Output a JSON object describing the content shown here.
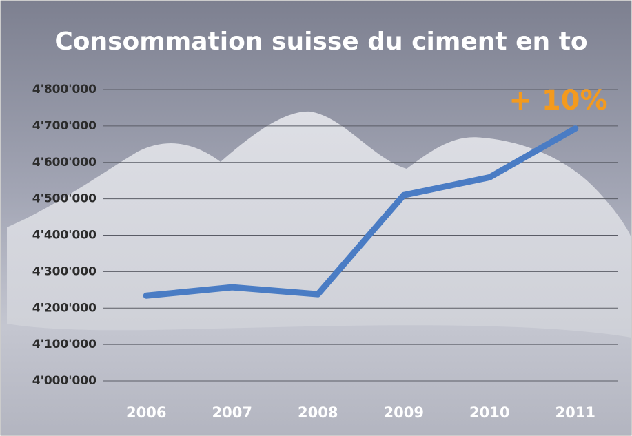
{
  "chart_data": {
    "type": "line",
    "title": "Consommation suisse du ciment en to",
    "categories": [
      "2006",
      "2007",
      "2008",
      "2009",
      "2010",
      "2011"
    ],
    "values": [
      4234000,
      4257000,
      4238000,
      4510000,
      4559000,
      4693000
    ],
    "color": "#4a7cc4",
    "ylim": [
      4000000,
      4800000
    ],
    "yticks": [
      {
        "value": 4000000,
        "label": "4'000'000"
      },
      {
        "value": 4100000,
        "label": "4'100'000"
      },
      {
        "value": 4200000,
        "label": "4'200'000"
      },
      {
        "value": 4300000,
        "label": "4'300'000"
      },
      {
        "value": 4400000,
        "label": "4'400'000"
      },
      {
        "value": 4500000,
        "label": "4'500'000"
      },
      {
        "value": 4600000,
        "label": "4'600'000"
      },
      {
        "value": 4700000,
        "label": "4'700'000"
      },
      {
        "value": 4800000,
        "label": "4'800'000"
      }
    ],
    "grid": true,
    "annotation": "+ 10%",
    "annotation_color": "#f39a1e"
  }
}
